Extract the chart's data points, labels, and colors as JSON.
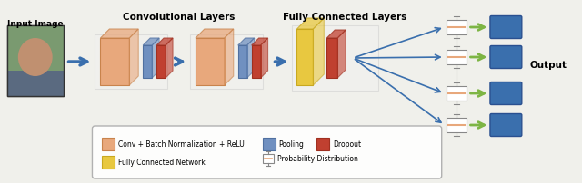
{
  "bg_color": "#f5f5f0",
  "fig_bg": "#f0f0eb",
  "title_conv": "Convolutional Layers",
  "title_fc": "Fully Connected Layers",
  "label_input": "Input Image",
  "label_output": "Output",
  "arrow_color": "#3a6fad",
  "green_arrow_color": "#7db544",
  "conv_face_color": "#e8a87c",
  "conv_edge_color": "#c8834c",
  "pool_face_color": "#7090c0",
  "pool_edge_color": "#5070a0",
  "dropout_face_color": "#c04030",
  "dropout_edge_color": "#a03020",
  "fc_face_color": "#e8c840",
  "fc_edge_color": "#c8a820",
  "box_face_color": "#ffffff",
  "box_edge_color": "#888888",
  "box_line_color": "#e8a87c",
  "legend_items": [
    {
      "label": "Conv + Batch Normalization + ReLU",
      "color": "#e8a87c",
      "edge": "#c8834c"
    },
    {
      "label": "Pooling",
      "color": "#7090c0",
      "edge": "#5070a0"
    },
    {
      "label": "Dropout",
      "color": "#c04030",
      "edge": "#a03020"
    },
    {
      "label": "Fully Connected Network",
      "color": "#e8c840",
      "edge": "#c8a820"
    },
    {
      "label": "Probability Distribution",
      "color": "#ffffff",
      "edge": "#888888"
    }
  ]
}
